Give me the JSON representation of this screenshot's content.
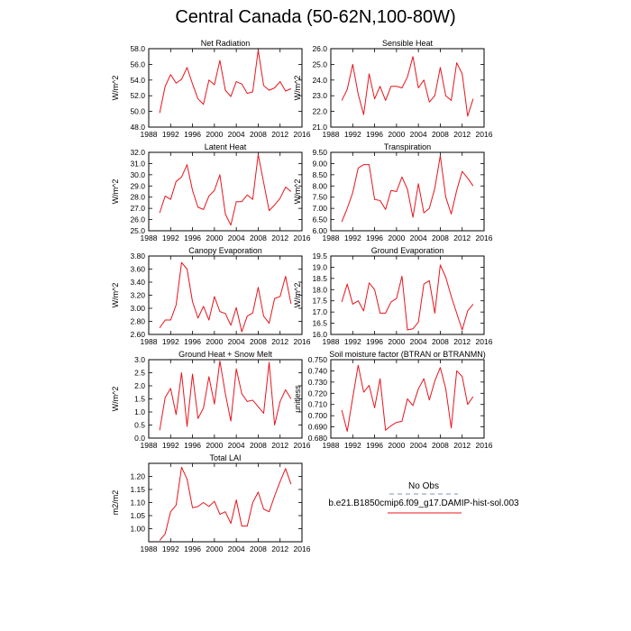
{
  "figure_title": "Central Canada (50-62N,100-80W)",
  "colors": {
    "model_line": "#e8141c",
    "obs_line": "#9aa7c4",
    "axis": "#000000"
  },
  "legend": {
    "obs_label": "No Obs",
    "model_label": "b.e21.B1850cmip6.f09_g17.DAMIP-hist-sol.003"
  },
  "chart_data": [
    {
      "type": "line",
      "title": "Net Radiation",
      "ylabel": "W/m^2",
      "xlim": [
        1988,
        2016
      ],
      "ylim": [
        48.0,
        58.0
      ],
      "xticks": [
        "1988",
        "1992",
        "1996",
        "2000",
        "2004",
        "2008",
        "2012",
        "2016"
      ],
      "yticks": [
        "48.0",
        "50.0",
        "52.0",
        "54.0",
        "56.0",
        "58.0"
      ],
      "x": [
        1990,
        1991,
        1992,
        1993,
        1994,
        1995,
        1996,
        1997,
        1998,
        1999,
        2000,
        2001,
        2002,
        2003,
        2004,
        2005,
        2006,
        2007,
        2008,
        2009,
        2010,
        2011,
        2012,
        2013,
        2014
      ],
      "series": [
        {
          "values": [
            49.8,
            53.2,
            54.7,
            53.6,
            54.1,
            55.6,
            53.5,
            51.6,
            50.9,
            54.0,
            53.4,
            56.5,
            52.7,
            51.9,
            53.8,
            53.5,
            52.3,
            52.5,
            57.8,
            53.3,
            52.7,
            53.0,
            53.8,
            52.6,
            52.9
          ]
        }
      ]
    },
    {
      "type": "line",
      "title": "Sensible Heat",
      "ylabel": "W/m^2",
      "xlim": [
        1988,
        2016
      ],
      "ylim": [
        21.0,
        26.0
      ],
      "xticks": [
        "1988",
        "1992",
        "1996",
        "2000",
        "2004",
        "2008",
        "2012",
        "2016"
      ],
      "yticks": [
        "21.0",
        "22.0",
        "23.0",
        "24.0",
        "25.0",
        "26.0"
      ],
      "x": [
        1990,
        1991,
        1992,
        1993,
        1994,
        1995,
        1996,
        1997,
        1998,
        1999,
        2000,
        2001,
        2002,
        2003,
        2004,
        2005,
        2006,
        2007,
        2008,
        2009,
        2010,
        2011,
        2012,
        2013,
        2014
      ],
      "series": [
        {
          "values": [
            22.7,
            23.4,
            25.0,
            23.1,
            21.8,
            24.4,
            22.8,
            23.6,
            22.7,
            23.6,
            23.6,
            23.5,
            24.2,
            25.5,
            23.5,
            24.0,
            22.6,
            23.0,
            24.8,
            23.0,
            22.7,
            25.1,
            24.4,
            21.7,
            22.8
          ]
        }
      ]
    },
    {
      "type": "line",
      "title": "Latent Heat",
      "ylabel": "W/m^2",
      "xlim": [
        1988,
        2016
      ],
      "ylim": [
        25.0,
        32.0
      ],
      "xticks": [
        "1988",
        "1992",
        "1996",
        "2000",
        "2004",
        "2008",
        "2012",
        "2016"
      ],
      "yticks": [
        "25.0",
        "26.0",
        "27.0",
        "28.0",
        "29.0",
        "30.0",
        "31.0",
        "32.0"
      ],
      "x": [
        1990,
        1991,
        1992,
        1993,
        1994,
        1995,
        1996,
        1997,
        1998,
        1999,
        2000,
        2001,
        2002,
        2003,
        2004,
        2005,
        2006,
        2007,
        2008,
        2009,
        2010,
        2011,
        2012,
        2013,
        2014
      ],
      "series": [
        {
          "values": [
            26.6,
            28.1,
            27.8,
            29.4,
            29.8,
            30.9,
            28.6,
            27.1,
            26.9,
            28.1,
            28.6,
            30.0,
            26.5,
            25.5,
            27.6,
            27.6,
            28.2,
            27.8,
            31.8,
            29.3,
            26.8,
            27.3,
            27.9,
            28.9,
            28.5
          ]
        }
      ]
    },
    {
      "type": "line",
      "title": "Transpiration",
      "ylabel": "W/m^2",
      "xlim": [
        1988,
        2016
      ],
      "ylim": [
        6.0,
        9.5
      ],
      "xticks": [
        "1988",
        "1992",
        "1996",
        "2000",
        "2004",
        "2008",
        "2012",
        "2016"
      ],
      "yticks": [
        "6.00",
        "6.50",
        "7.00",
        "7.50",
        "8.00",
        "8.50",
        "9.00",
        "9.50"
      ],
      "x": [
        1990,
        1991,
        1992,
        1993,
        1994,
        1995,
        1996,
        1997,
        1998,
        1999,
        2000,
        2001,
        2002,
        2003,
        2004,
        2005,
        2006,
        2007,
        2008,
        2009,
        2010,
        2011,
        2012,
        2013,
        2014
      ],
      "series": [
        {
          "values": [
            6.4,
            7.0,
            7.7,
            8.8,
            8.95,
            8.95,
            7.4,
            7.35,
            6.95,
            7.8,
            7.75,
            8.4,
            7.85,
            6.6,
            8.1,
            6.8,
            7.0,
            7.9,
            9.35,
            7.5,
            6.75,
            7.8,
            8.65,
            8.35,
            8.0
          ]
        }
      ]
    },
    {
      "type": "line",
      "title": "Canopy Evaporation",
      "ylabel": "W/m^2",
      "xlim": [
        1988,
        2016
      ],
      "ylim": [
        2.6,
        3.8
      ],
      "xticks": [
        "1988",
        "1992",
        "1996",
        "2000",
        "2004",
        "2008",
        "2012",
        "2016"
      ],
      "yticks": [
        "2.60",
        "2.80",
        "3.00",
        "3.20",
        "3.40",
        "3.60",
        "3.80"
      ],
      "x": [
        1990,
        1991,
        1992,
        1993,
        1994,
        1995,
        1996,
        1997,
        1998,
        1999,
        2000,
        2001,
        2002,
        2003,
        2004,
        2005,
        2006,
        2007,
        2008,
        2009,
        2010,
        2011,
        2012,
        2013,
        2014
      ],
      "series": [
        {
          "values": [
            2.7,
            2.82,
            2.82,
            3.05,
            3.7,
            3.6,
            3.1,
            2.85,
            3.03,
            2.82,
            3.18,
            2.95,
            2.92,
            2.74,
            3.01,
            2.64,
            2.88,
            2.93,
            3.32,
            2.88,
            2.77,
            3.15,
            3.18,
            3.49,
            3.07
          ]
        }
      ]
    },
    {
      "type": "line",
      "title": "Ground Evaporation",
      "ylabel": "W/m^2",
      "xlim": [
        1988,
        2016
      ],
      "ylim": [
        16.0,
        19.5
      ],
      "xticks": [
        "1988",
        "1992",
        "1996",
        "2000",
        "2004",
        "2008",
        "2012",
        "2016"
      ],
      "yticks": [
        "16.0",
        "16.5",
        "17.0",
        "17.5",
        "18.0",
        "18.5",
        "19.0",
        "19.5"
      ],
      "x": [
        1990,
        1991,
        1992,
        1993,
        1994,
        1995,
        1996,
        1997,
        1998,
        1999,
        2000,
        2001,
        2002,
        2003,
        2004,
        2005,
        2006,
        2007,
        2008,
        2009,
        2010,
        2011,
        2012,
        2013,
        2014
      ],
      "series": [
        {
          "values": [
            17.45,
            18.25,
            17.35,
            17.5,
            17.05,
            18.3,
            18.0,
            16.95,
            16.95,
            17.45,
            17.6,
            18.6,
            16.2,
            16.25,
            16.55,
            18.25,
            18.4,
            16.95,
            19.1,
            18.55,
            17.7,
            16.95,
            16.2,
            17.05,
            17.35
          ]
        }
      ]
    },
    {
      "type": "line",
      "title": "Ground Heat + Snow Melt",
      "ylabel": "W/m^2",
      "xlim": [
        1988,
        2016
      ],
      "ylim": [
        0.0,
        3.0
      ],
      "xticks": [
        "1988",
        "1992",
        "1996",
        "2000",
        "2004",
        "2008",
        "2012",
        "2016"
      ],
      "yticks": [
        "0.0",
        "0.5",
        "1.0",
        "1.5",
        "2.0",
        "2.5",
        "3.0"
      ],
      "x": [
        1990,
        1991,
        1992,
        1993,
        1994,
        1995,
        1996,
        1997,
        1998,
        1999,
        2000,
        2001,
        2002,
        2003,
        2004,
        2005,
        2006,
        2007,
        2008,
        2009,
        2010,
        2011,
        2012,
        2013,
        2014
      ],
      "series": [
        {
          "values": [
            0.3,
            1.55,
            1.9,
            0.9,
            2.5,
            0.45,
            2.45,
            0.75,
            1.15,
            2.35,
            1.3,
            2.95,
            1.7,
            0.65,
            2.65,
            1.7,
            1.4,
            1.45,
            1.2,
            0.95,
            2.9,
            0.5,
            1.4,
            1.85,
            1.5
          ]
        }
      ]
    },
    {
      "type": "line",
      "title": "Soil moisture factor (BTRAN or BTRANMN)",
      "ylabel": "unitless",
      "xlim": [
        1988,
        2016
      ],
      "ylim": [
        0.68,
        0.75
      ],
      "xticks": [
        "1988",
        "1992",
        "1996",
        "2000",
        "2004",
        "2008",
        "2012",
        "2016"
      ],
      "yticks": [
        "0.680",
        "0.690",
        "0.700",
        "0.710",
        "0.720",
        "0.730",
        "0.740",
        "0.750"
      ],
      "x": [
        1990,
        1991,
        1992,
        1993,
        1994,
        1995,
        1996,
        1997,
        1998,
        1999,
        2000,
        2001,
        2002,
        2003,
        2004,
        2005,
        2006,
        2007,
        2008,
        2009,
        2010,
        2011,
        2012,
        2013,
        2014
      ],
      "series": [
        {
          "values": [
            0.705,
            0.686,
            0.716,
            0.745,
            0.721,
            0.727,
            0.707,
            0.733,
            0.687,
            0.691,
            0.694,
            0.695,
            0.715,
            0.709,
            0.724,
            0.733,
            0.714,
            0.731,
            0.743,
            0.724,
            0.689,
            0.74,
            0.735,
            0.71,
            0.717
          ]
        }
      ]
    },
    {
      "type": "line",
      "title": "Total LAI",
      "ylabel": "m2/m2",
      "xlim": [
        1988,
        2016
      ],
      "ylim": [
        0.95,
        1.25
      ],
      "xticks": [
        "1988",
        "1992",
        "1996",
        "2000",
        "2004",
        "2008",
        "2012",
        "2016"
      ],
      "yticks": [
        "1.00",
        "1.05",
        "1.10",
        "1.15",
        "1.20"
      ],
      "x": [
        1990,
        1991,
        1992,
        1993,
        1994,
        1995,
        1996,
        1997,
        1998,
        1999,
        2000,
        2001,
        2002,
        2003,
        2004,
        2005,
        2006,
        2007,
        2008,
        2009,
        2010,
        2011,
        2012,
        2013,
        2014
      ],
      "series": [
        {
          "values": [
            0.955,
            0.98,
            1.065,
            1.09,
            1.235,
            1.19,
            1.08,
            1.085,
            1.1,
            1.085,
            1.105,
            1.055,
            1.065,
            1.02,
            1.11,
            1.01,
            1.01,
            1.1,
            1.14,
            1.075,
            1.065,
            1.125,
            1.18,
            1.23,
            1.17
          ]
        }
      ]
    }
  ]
}
